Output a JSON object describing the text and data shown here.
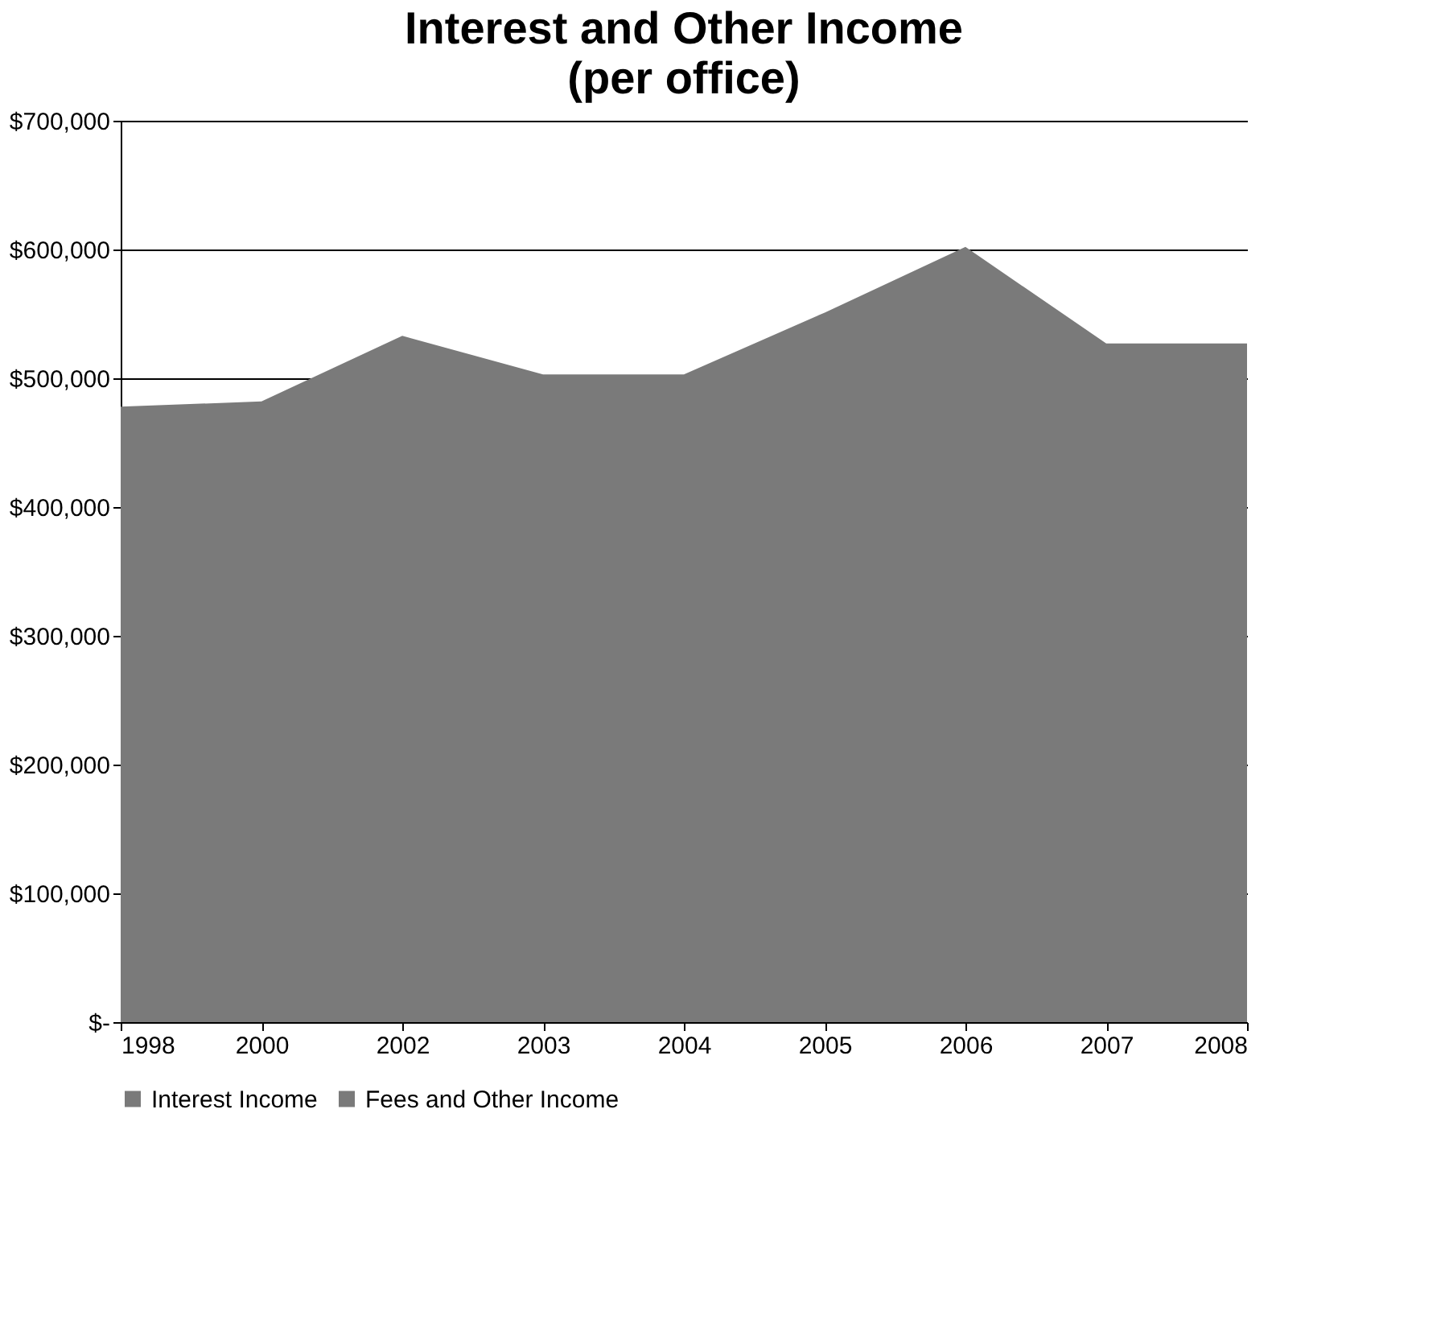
{
  "chart_data": {
    "type": "area",
    "title": "Interest and Other Income",
    "subtitle": "(per office)",
    "categories": [
      "1998",
      "2000",
      "2002",
      "2003",
      "2004",
      "2005",
      "2006",
      "2007",
      "2008"
    ],
    "series": [
      {
        "name": "Interest Income",
        "color": "#7a7a7a",
        "values": [
          478000,
          482000,
          533000,
          503000,
          503000,
          551000,
          602000,
          527000,
          527000
        ]
      },
      {
        "name": "Fees and Other Income",
        "color": "#7a7a7a",
        "values": [
          null,
          null,
          null,
          null,
          null,
          null,
          null,
          null,
          null
        ]
      }
    ],
    "ylim": [
      0,
      700000
    ],
    "yticks": [
      {
        "value": 0,
        "label": "$-"
      },
      {
        "value": 100000,
        "label": "$100,000"
      },
      {
        "value": 200000,
        "label": "$200,000"
      },
      {
        "value": 300000,
        "label": "$300,000"
      },
      {
        "value": 400000,
        "label": "$400,000"
      },
      {
        "value": 500000,
        "label": "$500,000"
      },
      {
        "value": 600000,
        "label": "$600,000"
      },
      {
        "value": 700000,
        "label": "$700,000"
      }
    ],
    "grid": "y",
    "legend": "bottom"
  }
}
